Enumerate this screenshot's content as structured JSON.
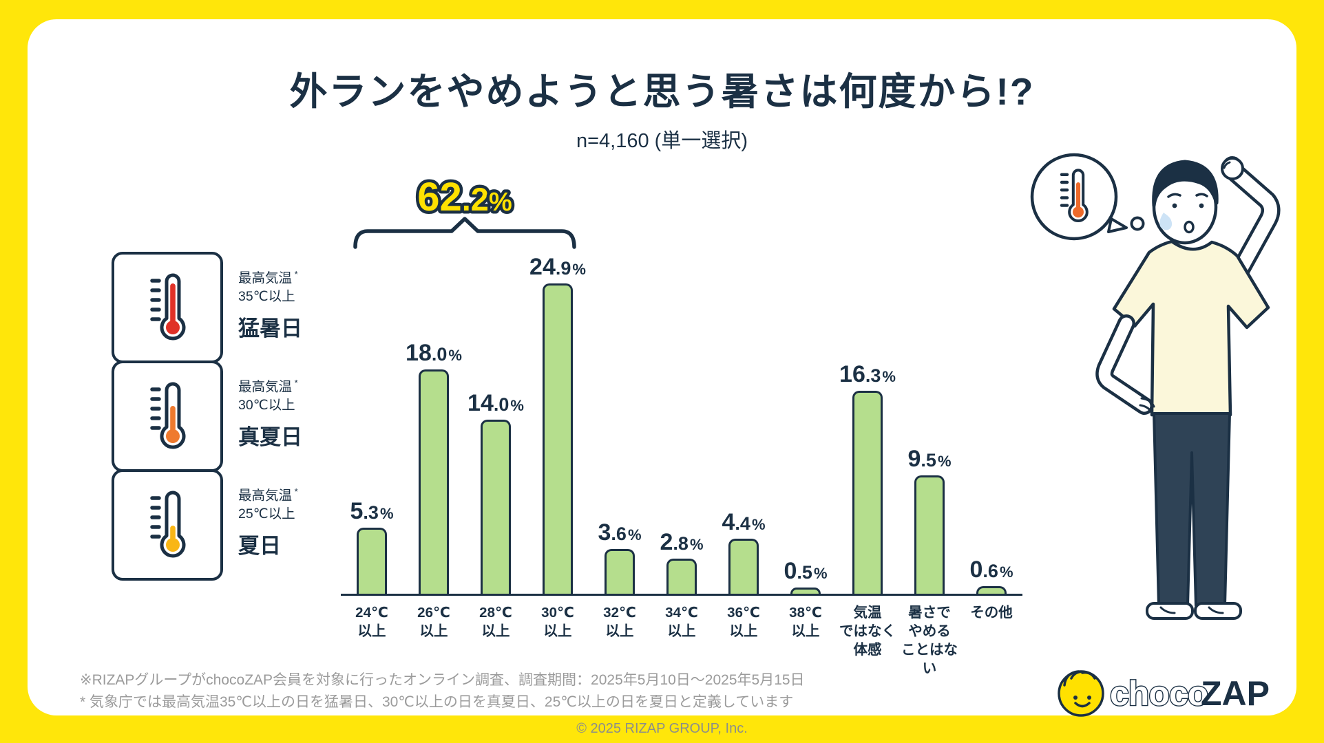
{
  "page": {
    "title": "外ランをやめようと思う暑さは何度から!?",
    "subtitle": "n=4,160 (単一選択)",
    "copyright": "© 2025 RIZAP GROUP, Inc."
  },
  "chart_data": {
    "type": "bar",
    "title": "外ランをやめようと思う暑さは何度から!?",
    "sample_note": "n=4,160 (単一選択)",
    "categories": [
      "24℃以上",
      "26℃以上",
      "28℃以上",
      "30℃以上",
      "32℃以上",
      "34℃以上",
      "36℃以上",
      "38℃以上",
      "気温ではなく体感",
      "暑さでやめることはない",
      "その他"
    ],
    "category_lines": [
      [
        "24℃",
        "以上"
      ],
      [
        "26℃",
        "以上"
      ],
      [
        "28℃",
        "以上"
      ],
      [
        "30℃",
        "以上"
      ],
      [
        "32℃",
        "以上"
      ],
      [
        "34℃",
        "以上"
      ],
      [
        "36℃",
        "以上"
      ],
      [
        "38℃",
        "以上"
      ],
      [
        "気温",
        "ではなく",
        "体感"
      ],
      [
        "暑さで",
        "やめる",
        "ことはない"
      ],
      [
        "その他"
      ]
    ],
    "values": [
      5.3,
      18.0,
      14.0,
      24.9,
      3.6,
      2.8,
      4.4,
      0.5,
      16.3,
      9.5,
      0.6
    ],
    "value_labels": [
      "5.3",
      "18.0",
      "14.0",
      "24.9",
      "3.6",
      "2.8",
      "4.4",
      "0.5",
      "16.3",
      "9.5",
      "0.6"
    ],
    "unit": "%",
    "ylim": [
      0,
      28
    ],
    "grid": false,
    "legend_position": "none",
    "highlight": {
      "value": 62.2,
      "label_int": "62",
      "label_frac": ".2",
      "label_pct": "%",
      "covers_categories": [
        "24℃以上",
        "26℃以上",
        "28℃以上",
        "30℃以上"
      ]
    }
  },
  "legend": {
    "items": [
      {
        "note": "最高気温",
        "note_mark": "*",
        "threshold": "35℃以上",
        "name": "猛暑日",
        "thermo_color": "#e03127",
        "thermo_level": "high"
      },
      {
        "note": "最高気温",
        "note_mark": "*",
        "threshold": "30℃以上",
        "name": "真夏日",
        "thermo_color": "#ef7a2e",
        "thermo_level": "mid"
      },
      {
        "note": "最高気温",
        "note_mark": "*",
        "threshold": "25℃以上",
        "name": "夏日",
        "thermo_color": "#f9b615",
        "thermo_level": "low"
      }
    ]
  },
  "footnotes": [
    "※RIZAPグループがchocoZAP会員を対象に行ったオンライン調査、調査期間：2025年5月10日〜2025年5月15日",
    "* 気象庁では最高気温35℃以上の日を猛暑日、30℃以上の日を真夏日、25℃以上の日を夏日と定義しています"
  ],
  "logo": {
    "choco": "choco",
    "zap": "ZAP"
  },
  "colors": {
    "frame_yellow": "#ffe60a",
    "accent_yellow": "#ffe100",
    "navy": "#1b3044",
    "bar_green": "#b5de8d",
    "footnote_gray": "#9b9b9b",
    "shirt_cream": "#fbf7da",
    "pants_navy": "#2f4356",
    "sweat_blue": "#cde3f6",
    "bubble_thermo_orange": "#ee6a2a"
  }
}
